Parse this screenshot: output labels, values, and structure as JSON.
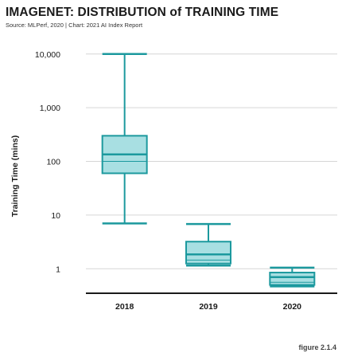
{
  "title": "IMAGENET: DISTRIBUTION of TRAINING TIME",
  "source": "Source: MLPerf, 2020 | Chart: 2021 AI Index Report",
  "figure_label": "figure 2.1.4",
  "colors": {
    "box_fill": "#a8dfe2",
    "box_stroke": "#1c999e",
    "grid": "#d6d6d6",
    "baseline": "#1a1a1a"
  },
  "chart_data": {
    "type": "boxplot",
    "yscale": "log",
    "ylabel": "Training Time (mins)",
    "ylim": [
      0.35,
      16000
    ],
    "yticks": [
      1,
      10,
      100,
      1000,
      10000
    ],
    "ytick_labels": [
      "1",
      "10",
      "100",
      "1,000",
      "10,000"
    ],
    "grid": true,
    "categories": [
      "2018",
      "2019",
      "2020"
    ],
    "boxes": [
      {
        "category": "2018",
        "min": 7,
        "q1": 60,
        "median": 135,
        "mean": 100,
        "q3": 300,
        "max": 10000
      },
      {
        "category": "2019",
        "min": 1.15,
        "q1": 1.25,
        "median": 1.85,
        "mean": 1.45,
        "q3": 3.2,
        "max": 6.8
      },
      {
        "category": "2020",
        "min": 0.47,
        "q1": 0.5,
        "median": 0.7,
        "mean": 0.56,
        "q3": 0.85,
        "max": 1.05
      }
    ]
  }
}
